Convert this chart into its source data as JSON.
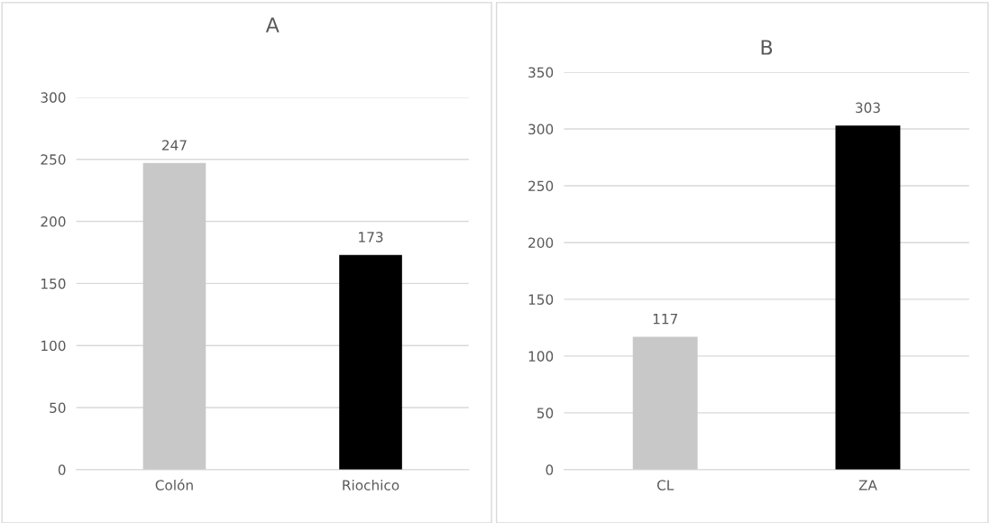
{
  "chart_data": [
    {
      "type": "bar",
      "title": "A",
      "categories": [
        "Colón",
        "Riochico"
      ],
      "values": [
        247,
        173
      ],
      "colors": [
        "#c8c8c8",
        "#000000"
      ],
      "ylim": [
        0,
        300
      ],
      "yticks": [
        0,
        50,
        100,
        150,
        200,
        250,
        300
      ],
      "grid": "y",
      "data_labels": true
    },
    {
      "type": "bar",
      "title": "B",
      "categories": [
        "CL",
        "ZA"
      ],
      "values": [
        117,
        303
      ],
      "colors": [
        "#c8c8c8",
        "#000000"
      ],
      "ylim": [
        0,
        350
      ],
      "yticks": [
        0,
        50,
        100,
        150,
        200,
        250,
        300,
        350
      ],
      "grid": "y",
      "data_labels": true
    }
  ]
}
